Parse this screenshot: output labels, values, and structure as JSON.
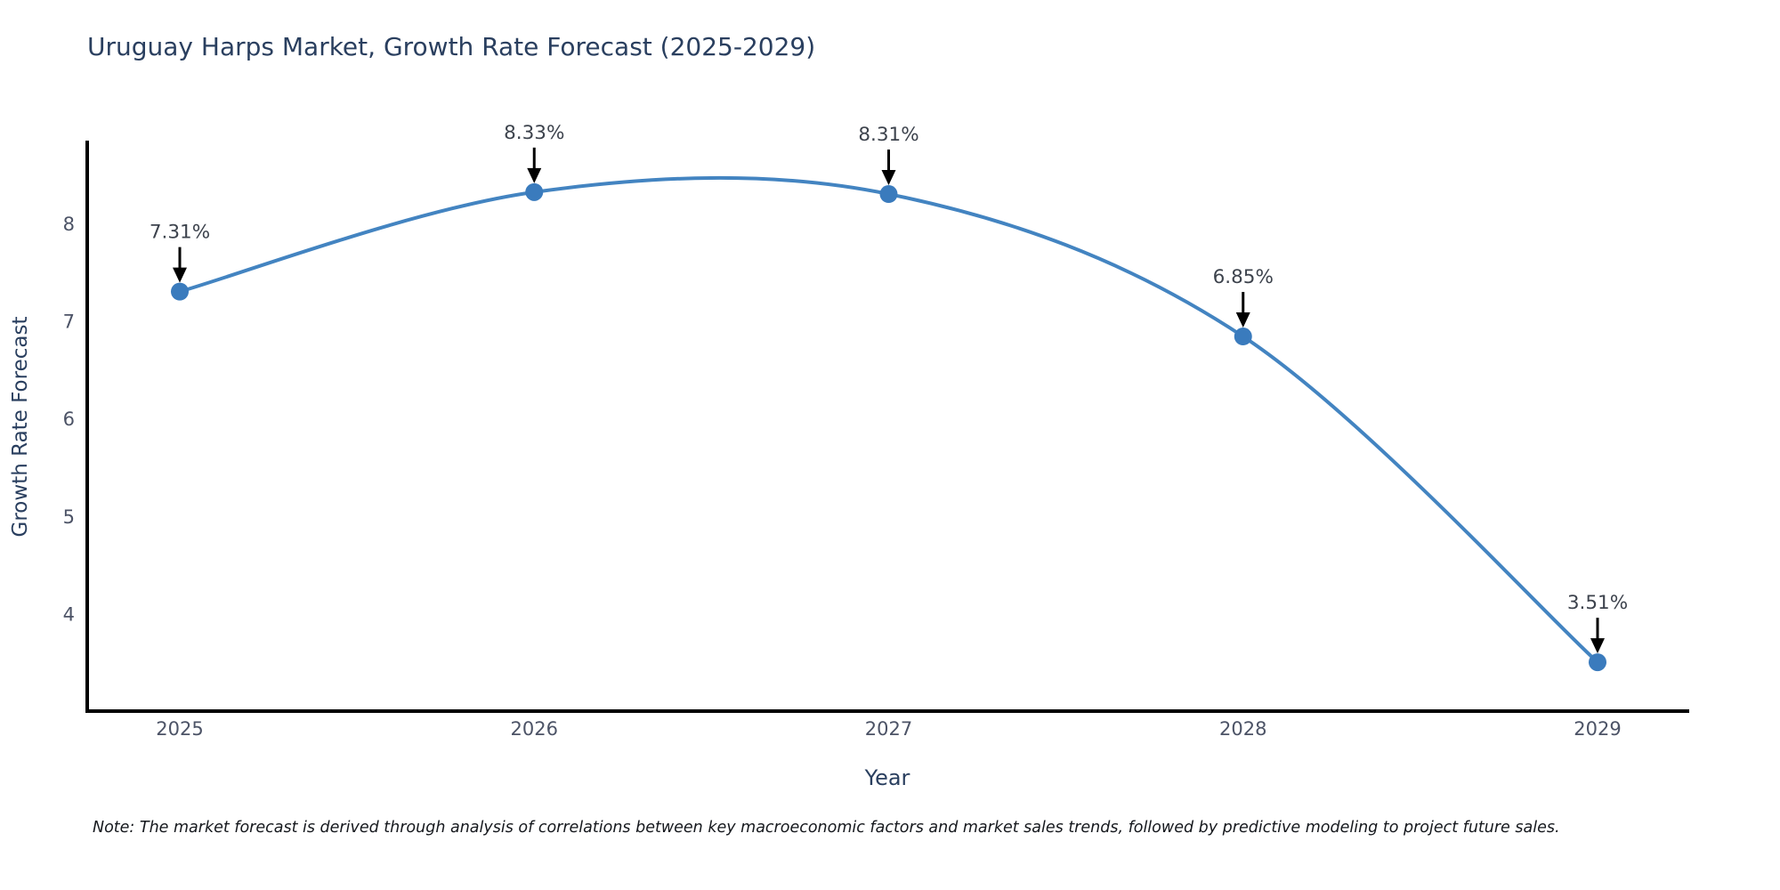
{
  "title": "Uruguay Harps Market, Growth Rate Forecast (2025-2029)",
  "note": "Note: The market forecast is derived through analysis of correlations between key macroeconomic factors and market sales trends, followed by predictive modeling to project future sales.",
  "chart_data": {
    "type": "line",
    "title": "Uruguay Harps Market, Growth Rate Forecast (2025-2029)",
    "x": [
      2025,
      2026,
      2027,
      2028,
      2029
    ],
    "values": [
      7.31,
      8.33,
      8.31,
      6.85,
      3.51
    ],
    "point_labels": [
      "7.31%",
      "8.33%",
      "8.31%",
      "6.85%",
      "3.51%"
    ],
    "xlabel": "Year",
    "ylabel": "Growth Rate Forecast",
    "yticks": [
      4,
      5,
      6,
      7,
      8
    ],
    "xticks": [
      2025,
      2026,
      2027,
      2028,
      2029
    ],
    "ylim": [
      3.0,
      8.85
    ],
    "xlim": [
      2024.73,
      2029.26
    ],
    "line_shape": "spline",
    "grid": "off",
    "legend": "none",
    "colors": {
      "line": "#4384c1",
      "marker": "#3a7bbd",
      "axis_line": "#000000",
      "tick_label": "#4c5366",
      "axis_title": "#2a3f5f",
      "annotation_text": "#3d434d",
      "annotation_arrow": "#000000",
      "title": "#2a3f5f"
    }
  }
}
